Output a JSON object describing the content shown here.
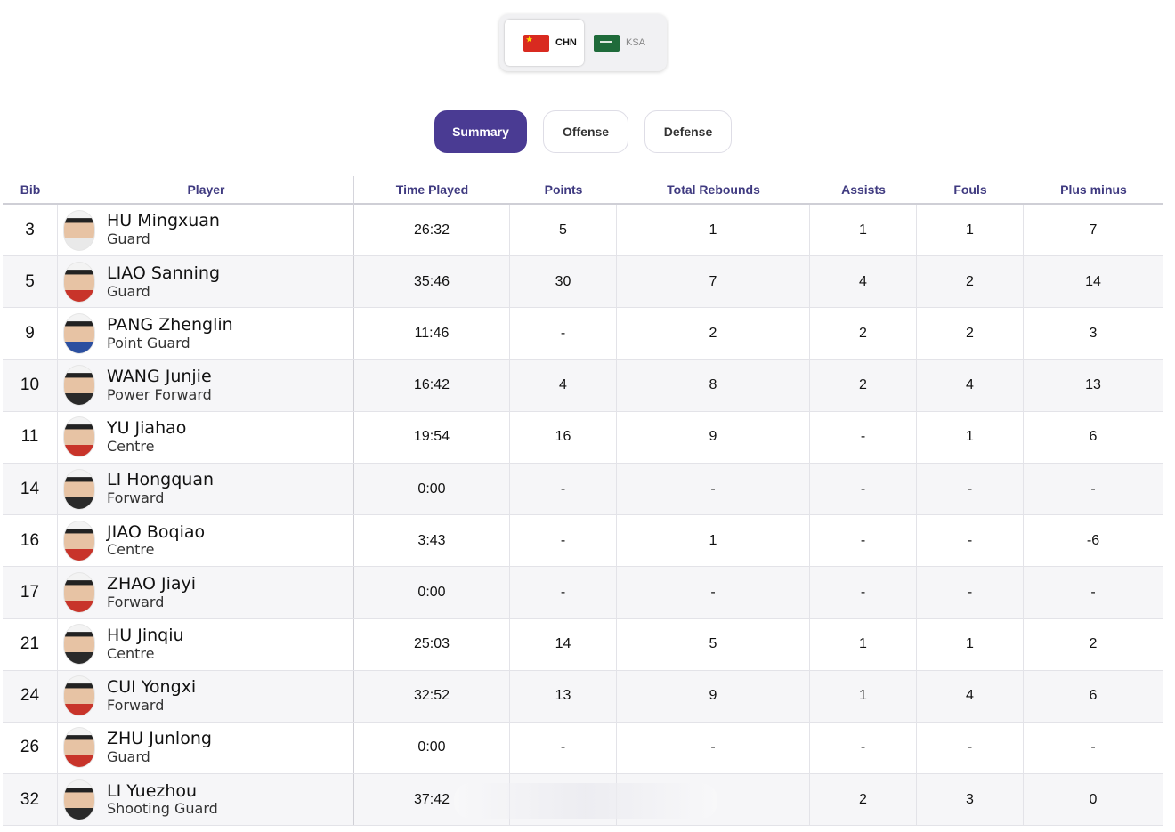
{
  "teams": {
    "active": {
      "code": "CHN",
      "flag_icon": "china-flag-icon"
    },
    "inactive": {
      "code": "KSA",
      "flag_icon": "saudi-flag-icon"
    }
  },
  "tabs": [
    {
      "label": "Summary",
      "active": true
    },
    {
      "label": "Offense",
      "active": false
    },
    {
      "label": "Defense",
      "active": false
    }
  ],
  "table": {
    "headers": {
      "bib": "Bib",
      "player": "Player",
      "time": "Time Played",
      "points": "Points",
      "rebounds": "Total Rebounds",
      "assists": "Assists",
      "fouls": "Fouls",
      "plus_minus": "Plus minus"
    },
    "rows": [
      {
        "bib": "3",
        "name": "HU Mingxuan",
        "position": "Guard",
        "time": "26:32",
        "points": "5",
        "rebounds": "1",
        "assists": "1",
        "fouls": "1",
        "plus_minus": "7"
      },
      {
        "bib": "5",
        "name": "LIAO Sanning",
        "position": "Guard",
        "time": "35:46",
        "points": "30",
        "rebounds": "7",
        "assists": "4",
        "fouls": "2",
        "plus_minus": "14"
      },
      {
        "bib": "9",
        "name": "PANG Zhenglin",
        "position": "Point Guard",
        "time": "11:46",
        "points": "-",
        "rebounds": "2",
        "assists": "2",
        "fouls": "2",
        "plus_minus": "3"
      },
      {
        "bib": "10",
        "name": "WANG Junjie",
        "position": "Power Forward",
        "time": "16:42",
        "points": "4",
        "rebounds": "8",
        "assists": "2",
        "fouls": "4",
        "plus_minus": "13"
      },
      {
        "bib": "11",
        "name": "YU Jiahao",
        "position": "Centre",
        "time": "19:54",
        "points": "16",
        "rebounds": "9",
        "assists": "-",
        "fouls": "1",
        "plus_minus": "6"
      },
      {
        "bib": "14",
        "name": "LI Hongquan",
        "position": "Forward",
        "time": "0:00",
        "points": "-",
        "rebounds": "-",
        "assists": "-",
        "fouls": "-",
        "plus_minus": "-"
      },
      {
        "bib": "16",
        "name": "JIAO Boqiao",
        "position": "Centre",
        "time": "3:43",
        "points": "-",
        "rebounds": "1",
        "assists": "-",
        "fouls": "-",
        "plus_minus": "-6"
      },
      {
        "bib": "17",
        "name": "ZHAO Jiayi",
        "position": "Forward",
        "time": "0:00",
        "points": "-",
        "rebounds": "-",
        "assists": "-",
        "fouls": "-",
        "plus_minus": "-"
      },
      {
        "bib": "21",
        "name": "HU Jinqiu",
        "position": "Centre",
        "time": "25:03",
        "points": "14",
        "rebounds": "5",
        "assists": "1",
        "fouls": "1",
        "plus_minus": "2"
      },
      {
        "bib": "24",
        "name": "CUI Yongxi",
        "position": "Forward",
        "time": "32:52",
        "points": "13",
        "rebounds": "9",
        "assists": "1",
        "fouls": "4",
        "plus_minus": "6"
      },
      {
        "bib": "26",
        "name": "ZHU Junlong",
        "position": "Guard",
        "time": "0:00",
        "points": "-",
        "rebounds": "-",
        "assists": "-",
        "fouls": "-",
        "plus_minus": "-"
      },
      {
        "bib": "32",
        "name": "LI Yuezhou",
        "position": "Shooting Guard",
        "time": "37:42",
        "points": "",
        "rebounds": "",
        "assists": "2",
        "fouls": "3",
        "plus_minus": "0"
      }
    ]
  }
}
